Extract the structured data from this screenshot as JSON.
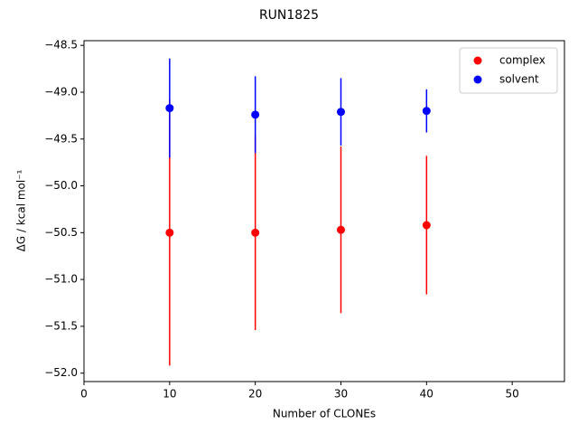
{
  "chart_data": {
    "type": "errorbar-scatter",
    "title": "RUN1825",
    "x_label": "Number of CLONEs",
    "y_label": "ΔG / kcal mol⁻¹",
    "x": [
      10,
      20,
      30,
      40
    ],
    "series": [
      {
        "name": "complex",
        "color": "#ff0000",
        "values": [
          -50.5,
          -50.5,
          -50.47,
          -50.42
        ],
        "errors": [
          1.42,
          1.04,
          0.89,
          0.74
        ]
      },
      {
        "name": "solvent",
        "color": "#0000ff",
        "values": [
          -49.17,
          -49.24,
          -49.21,
          -49.2
        ],
        "errors": [
          0.53,
          0.41,
          0.36,
          0.23
        ]
      }
    ],
    "xlim": [
      0,
      56.1
    ],
    "xticks": [
      0,
      10,
      20,
      30,
      40,
      50
    ],
    "ylim": [
      -52.09,
      -48.45
    ],
    "yticks": [
      {
        "value": -52.0,
        "label": "−52.0"
      },
      {
        "value": -51.5,
        "label": "−51.5"
      },
      {
        "value": -51.0,
        "label": "−51.0"
      },
      {
        "value": -50.5,
        "label": "−50.5"
      },
      {
        "value": -50.0,
        "label": "−50.0"
      },
      {
        "value": -49.5,
        "label": "−49.5"
      },
      {
        "value": -49.0,
        "label": "−49.0"
      },
      {
        "value": -48.5,
        "label": "−48.5"
      }
    ],
    "legend": "upper right",
    "grid": false
  }
}
